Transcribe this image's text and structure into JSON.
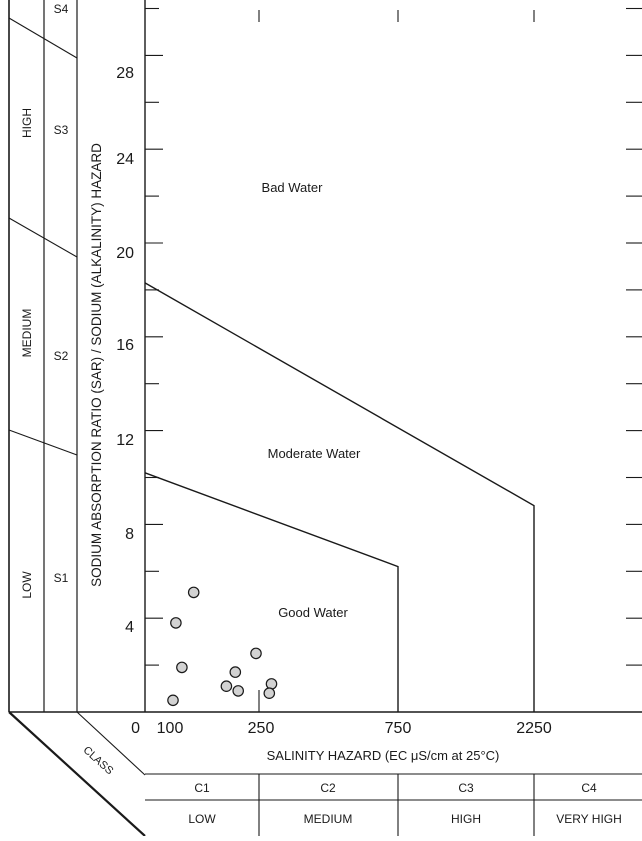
{
  "chart_data": {
    "type": "scatter",
    "title": "",
    "xlabel": "SALINITY HAZARD (EC μS/cm at 25°C)",
    "ylabel": "SODIUM ABSORPTION RATIO (SAR) / SODIUM (ALKALINITY) HAZARD",
    "x_scale": "piecewise",
    "x_ticks": [
      {
        "value": 0,
        "label": "0"
      },
      {
        "value": 100,
        "label": "100"
      },
      {
        "value": 250,
        "label": "250"
      },
      {
        "value": 750,
        "label": "750"
      },
      {
        "value": 2250,
        "label": "2250"
      }
    ],
    "y_ticks": [
      {
        "value": 4,
        "label": "4"
      },
      {
        "value": 8,
        "label": "8"
      },
      {
        "value": 12,
        "label": "12"
      },
      {
        "value": 16,
        "label": "16"
      },
      {
        "value": 20,
        "label": "20"
      },
      {
        "value": 24,
        "label": "24"
      },
      {
        "value": 28,
        "label": "28"
      }
    ],
    "ylim": [
      0,
      30
    ],
    "grid": false,
    "regions": [
      {
        "label": "Good Water",
        "label_at": {
          "x": 340,
          "y": 5.2
        }
      },
      {
        "label": "Moderate Water",
        "label_at": {
          "x": 660,
          "y": 12.7
        }
      },
      {
        "label": "Bad Water",
        "label_at": {
          "x": 550,
          "y": 24.8
        }
      }
    ],
    "boundaries": [
      {
        "points": [
          {
            "x": 0,
            "y": 10.2
          },
          {
            "x": 750,
            "y": 6.2
          },
          {
            "x": 750,
            "y": 0
          }
        ]
      },
      {
        "points": [
          {
            "x": 0,
            "y": 18.3
          },
          {
            "x": 2250,
            "y": 8.8
          },
          {
            "x": 2250,
            "y": 0
          }
        ]
      }
    ],
    "points": [
      {
        "x": 140,
        "y": 5.1
      },
      {
        "x": 110,
        "y": 3.8
      },
      {
        "x": 120,
        "y": 1.9
      },
      {
        "x": 105,
        "y": 0.5
      },
      {
        "x": 195,
        "y": 1.1
      },
      {
        "x": 210,
        "y": 1.7
      },
      {
        "x": 215,
        "y": 0.9
      },
      {
        "x": 245,
        "y": 2.5
      },
      {
        "x": 295,
        "y": 1.2
      },
      {
        "x": 287,
        "y": 0.8
      }
    ],
    "sodium_classes": [
      {
        "code": "S1",
        "level": "LOW"
      },
      {
        "code": "S2",
        "level": "MEDIUM"
      },
      {
        "code": "S3",
        "level": "HIGH"
      },
      {
        "code": "S4",
        "level": ""
      }
    ],
    "class_label": "CLASS",
    "salinity_classes": [
      {
        "code": "C1",
        "level": "LOW"
      },
      {
        "code": "C2",
        "level": "MEDIUM"
      },
      {
        "code": "C3",
        "level": "HIGH"
      },
      {
        "code": "C4",
        "level": "VERY HIGH"
      }
    ]
  }
}
